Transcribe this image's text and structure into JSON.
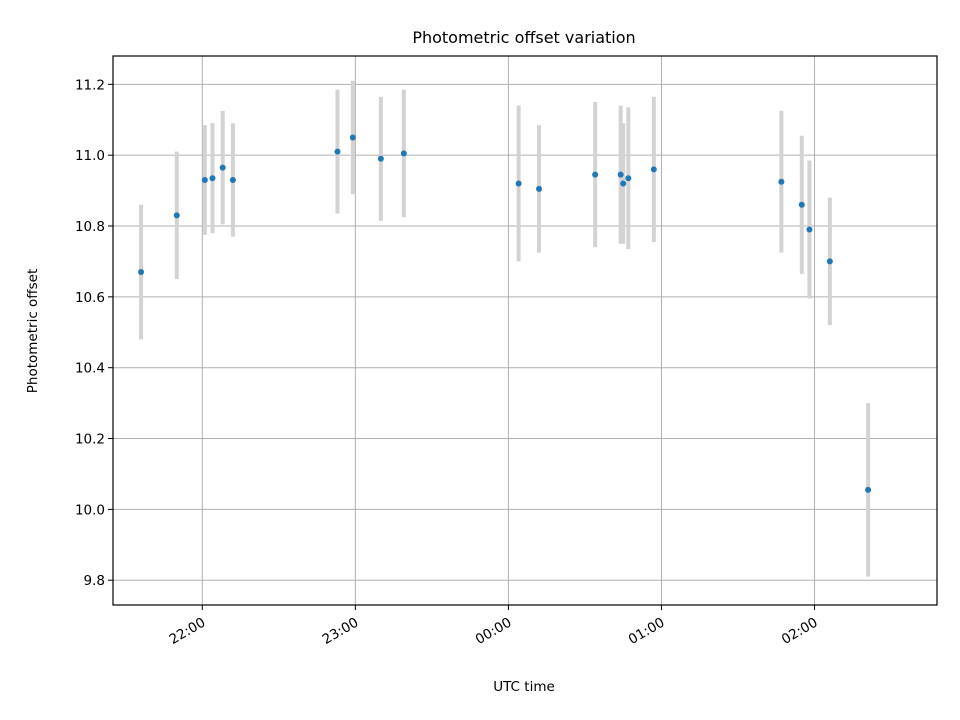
{
  "chart_data": {
    "type": "scatter",
    "title": "Photometric offset variation",
    "xlabel": "UTC time",
    "ylabel": "Photometric offset",
    "x_tick_labels": [
      "22:00",
      "23:00",
      "00:00",
      "01:00",
      "02:00"
    ],
    "y_tick_labels": [
      "9.8",
      "10.0",
      "10.2",
      "10.4",
      "10.6",
      "10.8",
      "11.0",
      "11.2"
    ],
    "y_ticks": [
      9.8,
      10.0,
      10.2,
      10.4,
      10.6,
      10.8,
      11.0,
      11.2
    ],
    "xlim": [
      "21:25",
      "02:48"
    ],
    "ylim": [
      9.73,
      11.28
    ],
    "grid": true,
    "point_color": "#1f77b4",
    "errorbar_color": "#d3d3d3",
    "points": [
      {
        "x": "21:36",
        "y": 10.67,
        "err": 0.19
      },
      {
        "x": "21:50",
        "y": 10.83,
        "err": 0.18
      },
      {
        "x": "22:01",
        "y": 10.93,
        "err": 0.155
      },
      {
        "x": "22:04",
        "y": 10.935,
        "err": 0.155
      },
      {
        "x": "22:08",
        "y": 10.965,
        "err": 0.16
      },
      {
        "x": "22:12",
        "y": 10.93,
        "err": 0.16
      },
      {
        "x": "22:53",
        "y": 11.01,
        "err": 0.175
      },
      {
        "x": "22:59",
        "y": 11.05,
        "err": 0.16
      },
      {
        "x": "23:10",
        "y": 10.99,
        "err": 0.175
      },
      {
        "x": "23:19",
        "y": 11.005,
        "err": 0.18
      },
      {
        "x": "00:04",
        "y": 10.92,
        "err": 0.22
      },
      {
        "x": "00:12",
        "y": 10.905,
        "err": 0.18
      },
      {
        "x": "00:34",
        "y": 10.945,
        "err": 0.205
      },
      {
        "x": "00:44",
        "y": 10.945,
        "err": 0.195
      },
      {
        "x": "00:45",
        "y": 10.92,
        "err": 0.17
      },
      {
        "x": "00:47",
        "y": 10.935,
        "err": 0.2
      },
      {
        "x": "00:57",
        "y": 10.96,
        "err": 0.205
      },
      {
        "x": "01:47",
        "y": 10.925,
        "err": 0.2
      },
      {
        "x": "01:55",
        "y": 10.86,
        "err": 0.195
      },
      {
        "x": "01:58",
        "y": 10.79,
        "err": 0.195
      },
      {
        "x": "02:06",
        "y": 10.7,
        "err": 0.18
      },
      {
        "x": "02:21",
        "y": 10.055,
        "err": 0.245
      }
    ]
  }
}
